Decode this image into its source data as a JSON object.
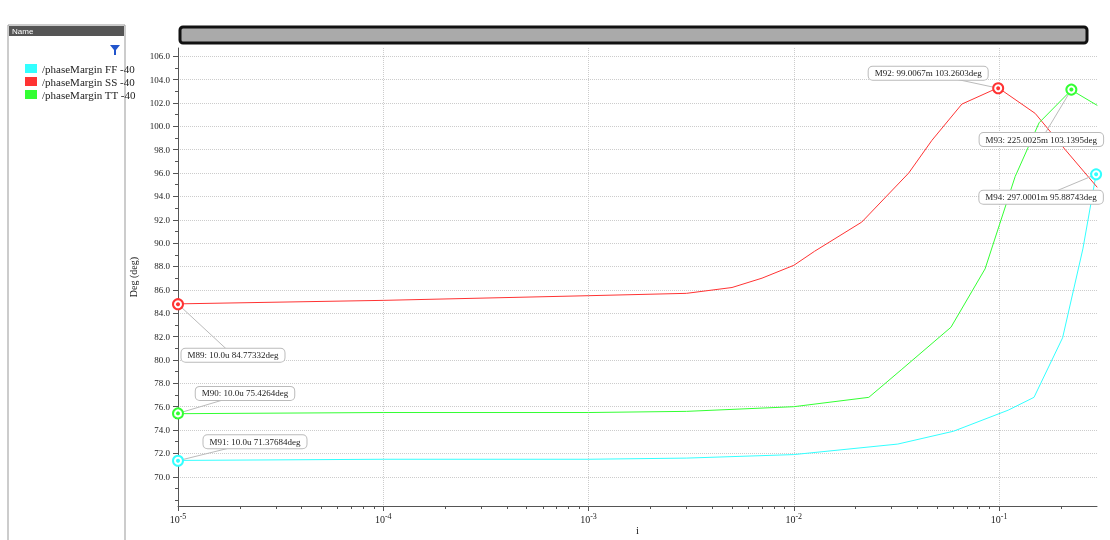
{
  "chart_data": {
    "type": "line",
    "xlabel": "i",
    "ylabel": "Deg (deg)",
    "log": "x",
    "grid": true,
    "legend": "left",
    "marker": "none",
    "line_style": "solid",
    "xlim": [
      1e-05,
      0.3
    ],
    "ylim": [
      67.5,
      106.7
    ],
    "xticks": [
      {
        "value": 1e-05,
        "label": "10$^{-5}$"
      },
      {
        "value": 0.0001,
        "label": "10$^{-4}$"
      },
      {
        "value": 0.001,
        "label": "10$^{-3}$"
      },
      {
        "value": 0.01,
        "label": "10$^{-2}$"
      },
      {
        "value": 0.1,
        "label": "10$^{-1}$"
      }
    ],
    "yticks": [
      {
        "value": 70,
        "label": "70.0"
      },
      {
        "value": 72,
        "label": "72.0"
      },
      {
        "value": 74,
        "label": "74.0"
      },
      {
        "value": 76,
        "label": "76.0"
      },
      {
        "value": 78,
        "label": "78.0"
      },
      {
        "value": 80,
        "label": "80.0"
      },
      {
        "value": 82,
        "label": "82.0"
      },
      {
        "value": 84,
        "label": "84.0"
      },
      {
        "value": 86,
        "label": "86.0"
      },
      {
        "value": 88,
        "label": "88.0"
      },
      {
        "value": 90,
        "label": "90.0"
      },
      {
        "value": 92,
        "label": "92.0"
      },
      {
        "value": 94,
        "label": "94.0"
      },
      {
        "value": 96,
        "label": "96.0"
      },
      {
        "value": 98,
        "label": "98.0"
      },
      {
        "value": 100,
        "label": "100.0"
      },
      {
        "value": 102,
        "label": "102.0"
      },
      {
        "value": 104,
        "label": "104.0"
      },
      {
        "value": 106,
        "label": "106.0"
      }
    ],
    "series": [
      {
        "name": "/phaseMargin FF -40",
        "color": "#33ffff",
        "x": [
          1e-05,
          0.0001,
          0.001,
          0.003,
          0.01,
          0.0321,
          0.06,
          0.1107,
          0.148,
          0.204,
          0.256,
          0.297
        ],
        "values": [
          71.4,
          71.5,
          71.5,
          71.6,
          71.9,
          72.8,
          73.9,
          75.7,
          76.8,
          81.9,
          89.5,
          95.9
        ]
      },
      {
        "name": "/phaseMargin SS -40",
        "color": "#ff3333",
        "x": [
          1e-05,
          0.0001,
          0.001,
          0.003,
          0.005,
          0.007,
          0.01,
          0.01262,
          0.02143,
          0.0363,
          0.0471,
          0.0659,
          0.099,
          0.15,
          0.21,
          0.3
        ],
        "values": [
          84.8,
          85.1,
          85.5,
          85.7,
          86.2,
          87.0,
          88.1,
          89.3,
          91.8,
          96.0,
          98.8,
          101.9,
          103.3,
          101.1,
          98.0,
          94.8
        ]
      },
      {
        "name": "/phaseMargin TT -40",
        "color": "#33ff33",
        "x": [
          1e-05,
          0.0001,
          0.001,
          0.003,
          0.01,
          0.0232,
          0.0336,
          0.0583,
          0.0855,
          0.1198,
          0.1567,
          0.225,
          0.3
        ],
        "values": [
          75.4,
          75.5,
          75.5,
          75.6,
          76.0,
          76.8,
          79.2,
          82.8,
          87.8,
          95.7,
          100.3,
          103.1,
          101.8
        ]
      }
    ],
    "annotations": [
      "Name",
      {
        "text": "M89: 10.0u 84.77332deg",
        "x": 1e-05,
        "y": 84.77332
      },
      {
        "text": "M90: 10.0u 75.4264deg",
        "x": 1e-05,
        "y": 75.4264
      },
      {
        "text": "M91: 10.0u 71.37684deg",
        "x": 1e-05,
        "y": 71.37684
      },
      {
        "text": "M92: 99.0067m 103.2603deg",
        "x": 0.0990067,
        "y": 103.2603
      },
      {
        "text": "M93: 225.0025m 103.1395deg",
        "x": 0.2250025,
        "y": 103.1395
      },
      {
        "text": "M94: 297.0001m 95.88743deg",
        "x": 0.2970001,
        "y": 95.88743
      }
    ]
  }
}
